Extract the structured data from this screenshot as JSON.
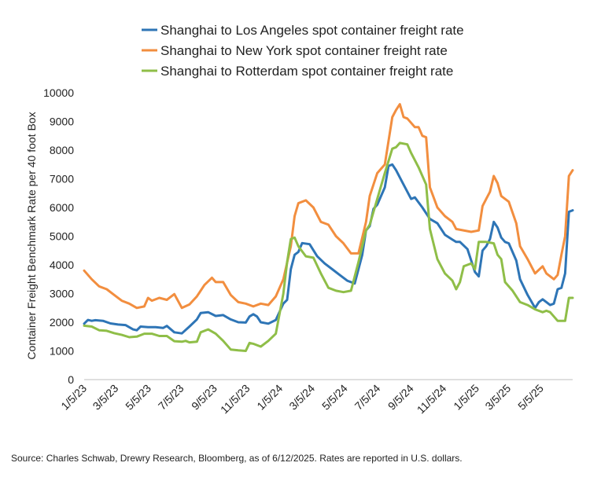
{
  "chart_data": {
    "type": "line",
    "ylabel": "Container Freight Benchmark Rate per 40 foot Box",
    "ylim": [
      0,
      10000
    ],
    "yticks": [
      0,
      1000,
      2000,
      3000,
      4000,
      5000,
      6000,
      7000,
      8000,
      9000,
      10000
    ],
    "ytick_labels": [
      "0",
      "1000",
      "2000",
      "3000",
      "4000",
      "5000",
      "6000",
      "7000",
      "8000",
      "9000",
      "10000"
    ],
    "xticks": [
      "2023-01-05",
      "2023-03-05",
      "2023-05-05",
      "2023-07-05",
      "2023-09-05",
      "2023-11-05",
      "2024-01-05",
      "2024-03-05",
      "2024-05-05",
      "2024-07-05",
      "2024-09-05",
      "2024-11-05",
      "2025-01-05",
      "2025-03-05",
      "2025-05-05"
    ],
    "xtick_labels": [
      "1/5/23",
      "3/5/23",
      "5/5/23",
      "7/5/23",
      "9/5/23",
      "11/5/23",
      "1/5/24",
      "3/5/24",
      "5/5/24",
      "7/5/24",
      "9/5/24",
      "11/5/24",
      "1/5/25",
      "3/5/25",
      "5/5/25"
    ],
    "xlim": [
      "2023-01-05",
      "2025-06-12"
    ],
    "grid": false,
    "legend_position": "top",
    "series": [
      {
        "name": "Shanghai to Los Angeles spot container freight rate",
        "color": "#2e75b6",
        "points": [
          [
            "2023-01-05",
            1950
          ],
          [
            "2023-01-12",
            2080
          ],
          [
            "2023-01-19",
            2050
          ],
          [
            "2023-01-26",
            2070
          ],
          [
            "2023-02-09",
            2050
          ],
          [
            "2023-02-23",
            1960
          ],
          [
            "2023-03-09",
            1920
          ],
          [
            "2023-03-23",
            1900
          ],
          [
            "2023-04-06",
            1750
          ],
          [
            "2023-04-13",
            1720
          ],
          [
            "2023-04-20",
            1850
          ],
          [
            "2023-05-04",
            1830
          ],
          [
            "2023-05-18",
            1830
          ],
          [
            "2023-06-01",
            1800
          ],
          [
            "2023-06-08",
            1870
          ],
          [
            "2023-06-22",
            1650
          ],
          [
            "2023-07-06",
            1610
          ],
          [
            "2023-07-20",
            1850
          ],
          [
            "2023-08-03",
            2100
          ],
          [
            "2023-08-10",
            2320
          ],
          [
            "2023-08-24",
            2350
          ],
          [
            "2023-09-07",
            2220
          ],
          [
            "2023-09-21",
            2250
          ],
          [
            "2023-10-05",
            2100
          ],
          [
            "2023-10-19",
            2000
          ],
          [
            "2023-11-02",
            1990
          ],
          [
            "2023-11-09",
            2200
          ],
          [
            "2023-11-16",
            2280
          ],
          [
            "2023-11-23",
            2200
          ],
          [
            "2023-11-30",
            2000
          ],
          [
            "2023-12-14",
            1950
          ],
          [
            "2023-12-28",
            2080
          ],
          [
            "2024-01-11",
            2650
          ],
          [
            "2024-01-18",
            2780
          ],
          [
            "2024-01-25",
            3850
          ],
          [
            "2024-02-01",
            4350
          ],
          [
            "2024-02-08",
            4450
          ],
          [
            "2024-02-15",
            4760
          ],
          [
            "2024-02-29",
            4720
          ],
          [
            "2024-03-14",
            4300
          ],
          [
            "2024-03-28",
            4050
          ],
          [
            "2024-04-11",
            3850
          ],
          [
            "2024-04-25",
            3650
          ],
          [
            "2024-05-09",
            3450
          ],
          [
            "2024-05-23",
            3350
          ],
          [
            "2024-06-06",
            4350
          ],
          [
            "2024-06-13",
            5200
          ],
          [
            "2024-06-20",
            5350
          ],
          [
            "2024-06-27",
            5950
          ],
          [
            "2024-07-04",
            6100
          ],
          [
            "2024-07-18",
            6700
          ],
          [
            "2024-07-25",
            7450
          ],
          [
            "2024-08-01",
            7500
          ],
          [
            "2024-08-08",
            7300
          ],
          [
            "2024-08-22",
            6800
          ],
          [
            "2024-09-05",
            6300
          ],
          [
            "2024-09-12",
            6350
          ],
          [
            "2024-09-26",
            6000
          ],
          [
            "2024-10-10",
            5600
          ],
          [
            "2024-10-24",
            5450
          ],
          [
            "2024-11-07",
            5050
          ],
          [
            "2024-11-21",
            4880
          ],
          [
            "2024-11-28",
            4800
          ],
          [
            "2024-12-05",
            4800
          ],
          [
            "2024-12-19",
            4550
          ],
          [
            "2024-12-26",
            4150
          ],
          [
            "2025-01-02",
            3750
          ],
          [
            "2025-01-09",
            3600
          ],
          [
            "2025-01-16",
            4500
          ],
          [
            "2025-01-23",
            4650
          ],
          [
            "2025-01-30",
            4900
          ],
          [
            "2025-02-06",
            5500
          ],
          [
            "2025-02-13",
            5300
          ],
          [
            "2025-02-20",
            4950
          ],
          [
            "2025-02-27",
            4800
          ],
          [
            "2025-03-06",
            4750
          ],
          [
            "2025-03-20",
            4150
          ],
          [
            "2025-03-27",
            3500
          ],
          [
            "2025-04-10",
            2950
          ],
          [
            "2025-04-24",
            2500
          ],
          [
            "2025-05-01",
            2700
          ],
          [
            "2025-05-08",
            2800
          ],
          [
            "2025-05-15",
            2700
          ],
          [
            "2025-05-22",
            2600
          ],
          [
            "2025-05-29",
            2650
          ],
          [
            "2025-06-05",
            3150
          ],
          [
            "2025-06-12",
            3200
          ],
          [
            "2025-06-19",
            3700
          ],
          [
            "2025-06-26",
            5850
          ],
          [
            "2025-07-03",
            5900
          ]
        ]
      },
      {
        "name": "Shanghai to New York spot container freight rate",
        "color": "#f28e3f",
        "points": [
          [
            "2023-01-05",
            3800
          ],
          [
            "2023-01-19",
            3500
          ],
          [
            "2023-02-02",
            3250
          ],
          [
            "2023-02-16",
            3150
          ],
          [
            "2023-03-02",
            2950
          ],
          [
            "2023-03-16",
            2750
          ],
          [
            "2023-03-30",
            2650
          ],
          [
            "2023-04-13",
            2500
          ],
          [
            "2023-04-27",
            2550
          ],
          [
            "2023-05-04",
            2850
          ],
          [
            "2023-05-11",
            2750
          ],
          [
            "2023-05-25",
            2850
          ],
          [
            "2023-06-08",
            2780
          ],
          [
            "2023-06-22",
            2980
          ],
          [
            "2023-07-06",
            2500
          ],
          [
            "2023-07-20",
            2620
          ],
          [
            "2023-08-03",
            2900
          ],
          [
            "2023-08-17",
            3300
          ],
          [
            "2023-08-31",
            3550
          ],
          [
            "2023-09-07",
            3400
          ],
          [
            "2023-09-21",
            3400
          ],
          [
            "2023-10-05",
            2950
          ],
          [
            "2023-10-19",
            2700
          ],
          [
            "2023-11-02",
            2650
          ],
          [
            "2023-11-16",
            2550
          ],
          [
            "2023-11-30",
            2650
          ],
          [
            "2023-12-14",
            2600
          ],
          [
            "2023-12-28",
            2900
          ],
          [
            "2024-01-11",
            3500
          ],
          [
            "2024-01-25",
            4650
          ],
          [
            "2024-02-01",
            5700
          ],
          [
            "2024-02-08",
            6150
          ],
          [
            "2024-02-22",
            6250
          ],
          [
            "2024-03-07",
            6000
          ],
          [
            "2024-03-21",
            5500
          ],
          [
            "2024-04-04",
            5400
          ],
          [
            "2024-04-18",
            5000
          ],
          [
            "2024-05-02",
            4750
          ],
          [
            "2024-05-16",
            4400
          ],
          [
            "2024-05-30",
            4400
          ],
          [
            "2024-06-13",
            5500
          ],
          [
            "2024-06-20",
            6400
          ],
          [
            "2024-07-04",
            7200
          ],
          [
            "2024-07-18",
            7500
          ],
          [
            "2024-08-01",
            9150
          ],
          [
            "2024-08-08",
            9400
          ],
          [
            "2024-08-15",
            9600
          ],
          [
            "2024-08-22",
            9150
          ],
          [
            "2024-08-29",
            9100
          ],
          [
            "2024-09-12",
            8800
          ],
          [
            "2024-09-19",
            8800
          ],
          [
            "2024-09-26",
            8500
          ],
          [
            "2024-10-03",
            8450
          ],
          [
            "2024-10-10",
            6700
          ],
          [
            "2024-10-24",
            6000
          ],
          [
            "2024-11-07",
            5700
          ],
          [
            "2024-11-21",
            5500
          ],
          [
            "2024-11-28",
            5250
          ],
          [
            "2024-12-26",
            5150
          ],
          [
            "2025-01-09",
            5200
          ],
          [
            "2025-01-16",
            6050
          ],
          [
            "2025-01-23",
            6300
          ],
          [
            "2025-01-30",
            6550
          ],
          [
            "2025-02-06",
            7100
          ],
          [
            "2025-02-13",
            6850
          ],
          [
            "2025-02-20",
            6400
          ],
          [
            "2025-03-06",
            6200
          ],
          [
            "2025-03-20",
            5450
          ],
          [
            "2025-03-27",
            4650
          ],
          [
            "2025-04-10",
            4200
          ],
          [
            "2025-04-24",
            3700
          ],
          [
            "2025-05-08",
            3950
          ],
          [
            "2025-05-15",
            3700
          ],
          [
            "2025-05-22",
            3600
          ],
          [
            "2025-05-29",
            3500
          ],
          [
            "2025-06-05",
            3650
          ],
          [
            "2025-06-12",
            4350
          ],
          [
            "2025-06-19",
            5000
          ],
          [
            "2025-06-26",
            7100
          ],
          [
            "2025-07-03",
            7300
          ]
        ]
      },
      {
        "name": "Shanghai to Rotterdam spot container freight rate",
        "color": "#8fbe48",
        "points": [
          [
            "2023-01-05",
            1880
          ],
          [
            "2023-01-19",
            1850
          ],
          [
            "2023-02-02",
            1720
          ],
          [
            "2023-02-16",
            1700
          ],
          [
            "2023-03-02",
            1620
          ],
          [
            "2023-03-16",
            1560
          ],
          [
            "2023-03-30",
            1480
          ],
          [
            "2023-04-13",
            1500
          ],
          [
            "2023-04-27",
            1600
          ],
          [
            "2023-05-11",
            1600
          ],
          [
            "2023-05-25",
            1520
          ],
          [
            "2023-06-08",
            1520
          ],
          [
            "2023-06-22",
            1340
          ],
          [
            "2023-07-06",
            1320
          ],
          [
            "2023-07-13",
            1350
          ],
          [
            "2023-07-20",
            1300
          ],
          [
            "2023-08-03",
            1320
          ],
          [
            "2023-08-10",
            1650
          ],
          [
            "2023-08-24",
            1750
          ],
          [
            "2023-09-07",
            1600
          ],
          [
            "2023-09-21",
            1350
          ],
          [
            "2023-10-05",
            1050
          ],
          [
            "2023-10-19",
            1020
          ],
          [
            "2023-11-02",
            1000
          ],
          [
            "2023-11-09",
            1280
          ],
          [
            "2023-11-16",
            1250
          ],
          [
            "2023-11-30",
            1150
          ],
          [
            "2023-12-14",
            1350
          ],
          [
            "2023-12-28",
            1600
          ],
          [
            "2024-01-11",
            3000
          ],
          [
            "2024-01-18",
            4100
          ],
          [
            "2024-01-25",
            4900
          ],
          [
            "2024-02-01",
            4950
          ],
          [
            "2024-02-08",
            4650
          ],
          [
            "2024-02-22",
            4300
          ],
          [
            "2024-03-07",
            4250
          ],
          [
            "2024-03-21",
            3700
          ],
          [
            "2024-04-04",
            3200
          ],
          [
            "2024-04-18",
            3100
          ],
          [
            "2024-05-02",
            3050
          ],
          [
            "2024-05-16",
            3100
          ],
          [
            "2024-05-30",
            4100
          ],
          [
            "2024-06-13",
            5200
          ],
          [
            "2024-06-20",
            5400
          ],
          [
            "2024-07-04",
            6300
          ],
          [
            "2024-07-18",
            7200
          ],
          [
            "2024-08-01",
            8050
          ],
          [
            "2024-08-08",
            8100
          ],
          [
            "2024-08-15",
            8250
          ],
          [
            "2024-08-29",
            8200
          ],
          [
            "2024-09-05",
            7900
          ],
          [
            "2024-09-19",
            7400
          ],
          [
            "2024-10-03",
            6800
          ],
          [
            "2024-10-10",
            5250
          ],
          [
            "2024-10-24",
            4200
          ],
          [
            "2024-11-07",
            3700
          ],
          [
            "2024-11-21",
            3450
          ],
          [
            "2024-11-28",
            3150
          ],
          [
            "2024-12-05",
            3400
          ],
          [
            "2024-12-12",
            3950
          ],
          [
            "2024-12-19",
            4000
          ],
          [
            "2024-12-26",
            4050
          ],
          [
            "2025-01-02",
            3850
          ],
          [
            "2025-01-09",
            4800
          ],
          [
            "2025-01-23",
            4800
          ],
          [
            "2025-02-06",
            4750
          ],
          [
            "2025-02-13",
            4350
          ],
          [
            "2025-02-20",
            4200
          ],
          [
            "2025-02-27",
            3400
          ],
          [
            "2025-03-13",
            3100
          ],
          [
            "2025-03-27",
            2700
          ],
          [
            "2025-04-10",
            2600
          ],
          [
            "2025-04-24",
            2450
          ],
          [
            "2025-05-08",
            2350
          ],
          [
            "2025-05-15",
            2400
          ],
          [
            "2025-05-22",
            2350
          ],
          [
            "2025-06-05",
            2050
          ],
          [
            "2025-06-19",
            2050
          ],
          [
            "2025-06-26",
            2850
          ],
          [
            "2025-07-03",
            2850
          ]
        ]
      }
    ],
    "source_note": "Source: Charles Schwab, Drewry Research, Bloomberg, as of 6/12/2025. Rates are reported in U.S. dollars."
  }
}
